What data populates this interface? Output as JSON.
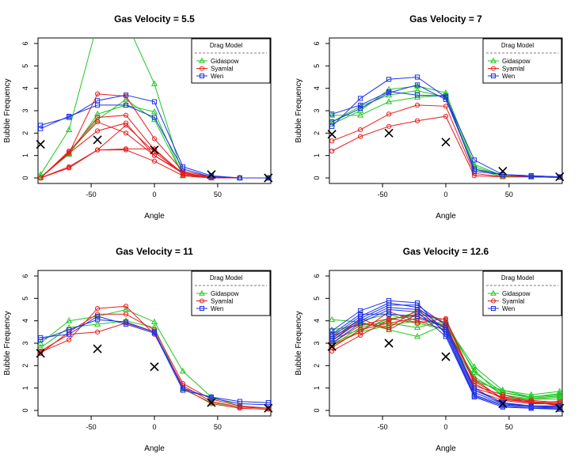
{
  "figure": {
    "domain": "multi-panel line chart"
  },
  "legend": {
    "title": "Drag Model",
    "entries": [
      {
        "name": "Gidaspow",
        "color": "#1ec81e",
        "marker": "triangle"
      },
      {
        "name": "Syamlal",
        "color": "#e61e1e",
        "marker": "circle"
      },
      {
        "name": "Wen",
        "color": "#1e32e6",
        "marker": "square"
      }
    ]
  },
  "chart_data": [
    {
      "type": "line",
      "title": "Gas Velocity = 5.5",
      "xlabel": "Angle",
      "ylabel": "Bubble Frequency",
      "x": [
        -90,
        -67.5,
        -45,
        -22.5,
        0,
        22.5,
        45,
        67.5,
        90
      ],
      "xticks": [
        "-50",
        "0",
        "50"
      ],
      "xtick_values": [
        -50,
        0,
        50
      ],
      "yticks": [
        "0",
        "1",
        "2",
        "3",
        "4",
        "5",
        "6"
      ],
      "xlim": [
        -92,
        92
      ],
      "ylim": [
        0,
        6
      ],
      "series": [
        {
          "name": "Gidaspow",
          "values": [
            0.15,
            2.15,
            6.9,
            7.0,
            4.2,
            0.1,
            0.0,
            0.0,
            0.0
          ]
        },
        {
          "name": "Gidaspow",
          "values": [
            0.05,
            1.05,
            2.85,
            3.25,
            2.95,
            0.1,
            0.0,
            0.0,
            0.0
          ]
        },
        {
          "name": "Gidaspow",
          "values": [
            0.0,
            1.1,
            2.6,
            3.5,
            2.6,
            0.1,
            0.0,
            0.0,
            0.0
          ]
        },
        {
          "name": "Syamlal",
          "values": [
            0.0,
            1.1,
            3.75,
            3.65,
            1.75,
            0.3,
            0.05,
            0.0,
            0.0
          ]
        },
        {
          "name": "Syamlal",
          "values": [
            0.0,
            1.15,
            2.7,
            2.8,
            1.25,
            0.2,
            0.05,
            0.0,
            0.0
          ]
        },
        {
          "name": "Syamlal",
          "values": [
            0.0,
            1.1,
            2.1,
            2.45,
            1.0,
            0.25,
            0.0,
            0.0,
            0.0
          ]
        },
        {
          "name": "Syamlal",
          "values": [
            0.0,
            0.45,
            1.25,
            2.35,
            1.15,
            0.2,
            0.0,
            0.0,
            0.0
          ]
        },
        {
          "name": "Syamlal",
          "values": [
            0.0,
            0.45,
            1.25,
            1.3,
            1.3,
            0.15,
            0.0,
            0.0,
            0.0
          ]
        },
        {
          "name": "Syamlal",
          "values": [
            0.0,
            0.5,
            1.25,
            1.25,
            0.75,
            0.1,
            0.0,
            0.0,
            0.0
          ]
        },
        {
          "name": "Syamlal",
          "values": [
            0.0,
            1.2,
            2.5,
            2.0,
            1.0,
            0.2,
            0.0,
            0.0,
            0.0
          ]
        },
        {
          "name": "Wen",
          "values": [
            2.35,
            2.7,
            3.45,
            3.7,
            3.4,
            0.5,
            0.1,
            0.0,
            0.0
          ]
        },
        {
          "name": "Wen",
          "values": [
            2.2,
            2.75,
            3.25,
            3.25,
            2.7,
            0.4,
            0.05,
            0.0,
            0.0
          ]
        }
      ],
      "observed": {
        "x": [
          -90,
          -45,
          0,
          45,
          90
        ],
        "y": [
          1.5,
          1.7,
          1.25,
          0.15,
          0.0
        ]
      }
    },
    {
      "type": "line",
      "title": "Gas Velocity = 7",
      "xlabel": "Angle",
      "ylabel": "Bubble Frequency",
      "x": [
        -90,
        -67.5,
        -45,
        -22.5,
        0,
        22.5,
        45,
        67.5,
        90
      ],
      "xticks": [
        "-50",
        "0",
        "50"
      ],
      "xtick_values": [
        -50,
        0,
        50
      ],
      "yticks": [
        "0",
        "1",
        "2",
        "3",
        "4",
        "5",
        "6"
      ],
      "xlim": [
        -92,
        92
      ],
      "ylim": [
        0,
        6
      ],
      "series": [
        {
          "name": "Gidaspow",
          "values": [
            2.4,
            3.0,
            3.95,
            4.1,
            3.8,
            0.6,
            0.1,
            0.05,
            0.02
          ]
        },
        {
          "name": "Gidaspow",
          "values": [
            2.5,
            3.2,
            3.7,
            3.9,
            3.6,
            0.5,
            0.1,
            0.05,
            0.02
          ]
        },
        {
          "name": "Gidaspow",
          "values": [
            2.8,
            2.8,
            3.4,
            3.6,
            3.7,
            0.4,
            0.05,
            0.05,
            0.02
          ]
        },
        {
          "name": "Syamlal",
          "values": [
            1.2,
            1.85,
            2.3,
            2.55,
            2.75,
            0.1,
            0.05,
            0.05,
            0.02
          ]
        },
        {
          "name": "Syamlal",
          "values": [
            1.65,
            2.15,
            2.85,
            3.25,
            3.2,
            0.2,
            0.05,
            0.05,
            0.02
          ]
        },
        {
          "name": "Wen",
          "values": [
            2.3,
            3.55,
            4.4,
            4.5,
            3.6,
            0.8,
            0.15,
            0.05,
            0.05
          ]
        },
        {
          "name": "Wen",
          "values": [
            2.5,
            3.1,
            3.8,
            4.15,
            3.5,
            0.4,
            0.15,
            0.1,
            0.05
          ]
        },
        {
          "name": "Wen",
          "values": [
            2.85,
            3.25,
            3.85,
            3.7,
            3.65,
            0.3,
            0.15,
            0.1,
            0.05
          ]
        }
      ],
      "observed": {
        "x": [
          -90,
          -45,
          0,
          45,
          90
        ],
        "y": [
          1.95,
          2.0,
          1.6,
          0.3,
          0.05
        ]
      }
    },
    {
      "type": "line",
      "title": "Gas Velocity = 11",
      "xlabel": "Angle",
      "ylabel": "Bubble Frequency",
      "x": [
        -90,
        -67.5,
        -45,
        -22.5,
        0,
        22.5,
        45,
        67.5,
        90
      ],
      "xticks": [
        "-50",
        "0",
        "50"
      ],
      "xtick_values": [
        -50,
        0,
        50
      ],
      "yticks": [
        "0",
        "1",
        "2",
        "3",
        "4",
        "5",
        "6"
      ],
      "xlim": [
        -92,
        92
      ],
      "ylim": [
        0,
        6
      ],
      "series": [
        {
          "name": "Gidaspow",
          "values": [
            3.0,
            4.0,
            4.2,
            4.5,
            3.95,
            1.75,
            0.6,
            0.2,
            0.1
          ]
        },
        {
          "name": "Gidaspow",
          "values": [
            2.8,
            3.7,
            3.85,
            4.0,
            3.7,
            0.95,
            0.35,
            0.15,
            0.1
          ]
        },
        {
          "name": "Syamlal",
          "values": [
            2.6,
            3.15,
            4.55,
            4.65,
            3.4,
            1.1,
            0.4,
            0.15,
            0.1
          ]
        },
        {
          "name": "Syamlal",
          "values": [
            2.65,
            3.4,
            3.5,
            3.9,
            3.5,
            1.0,
            0.3,
            0.1,
            0.05
          ]
        },
        {
          "name": "Syamlal",
          "values": [
            2.55,
            3.5,
            4.3,
            4.3,
            3.6,
            1.2,
            0.5,
            0.2,
            0.1
          ]
        },
        {
          "name": "Wen",
          "values": [
            3.25,
            3.4,
            4.2,
            3.85,
            3.45,
            0.9,
            0.6,
            0.4,
            0.35
          ]
        },
        {
          "name": "Wen",
          "values": [
            3.15,
            3.6,
            4.05,
            3.95,
            3.5,
            1.0,
            0.55,
            0.3,
            0.25
          ]
        }
      ],
      "observed": {
        "x": [
          -90,
          -45,
          0,
          45,
          90
        ],
        "y": [
          2.55,
          2.75,
          1.95,
          0.35,
          0.1
        ]
      }
    },
    {
      "type": "line",
      "title": "Gas Velocity = 12.6",
      "xlabel": "Angle",
      "ylabel": "Bubble Frequency",
      "x": [
        -90,
        -67.5,
        -45,
        -22.5,
        0,
        22.5,
        45,
        67.5,
        90
      ],
      "xticks": [
        "-50",
        "0",
        "50"
      ],
      "xtick_values": [
        -50,
        0,
        50
      ],
      "yticks": [
        "0",
        "1",
        "2",
        "3",
        "4",
        "5",
        "6"
      ],
      "xlim": [
        -92,
        92
      ],
      "ylim": [
        0,
        6
      ],
      "series": [
        {
          "name": "Gidaspow",
          "values": [
            4.05,
            3.95,
            3.6,
            3.3,
            3.85,
            1.95,
            0.9,
            0.7,
            0.85
          ]
        },
        {
          "name": "Gidaspow",
          "values": [
            3.6,
            3.8,
            3.9,
            3.7,
            4.0,
            1.7,
            0.8,
            0.6,
            0.7
          ]
        },
        {
          "name": "Gidaspow",
          "values": [
            3.2,
            3.6,
            4.1,
            4.2,
            3.7,
            1.5,
            0.7,
            0.5,
            0.6
          ]
        },
        {
          "name": "Gidaspow",
          "values": [
            3.4,
            4.0,
            4.3,
            3.9,
            3.6,
            1.3,
            0.9,
            0.6,
            0.75
          ]
        },
        {
          "name": "Gidaspow",
          "values": [
            3.0,
            3.5,
            3.8,
            4.0,
            3.8,
            1.8,
            0.6,
            0.5,
            0.5
          ]
        },
        {
          "name": "Gidaspow",
          "values": [
            2.9,
            3.7,
            4.0,
            4.4,
            3.9,
            1.4,
            0.8,
            0.55,
            0.65
          ]
        },
        {
          "name": "Syamlal",
          "values": [
            2.65,
            3.35,
            4.05,
            4.3,
            4.05,
            1.2,
            0.5,
            0.4,
            0.3
          ]
        },
        {
          "name": "Syamlal",
          "values": [
            2.8,
            3.6,
            3.9,
            4.1,
            3.8,
            1.0,
            0.6,
            0.35,
            0.25
          ]
        },
        {
          "name": "Syamlal",
          "values": [
            3.0,
            3.8,
            4.1,
            3.9,
            4.1,
            1.3,
            0.55,
            0.45,
            0.35
          ]
        },
        {
          "name": "Syamlal",
          "values": [
            3.3,
            3.9,
            3.7,
            4.5,
            3.9,
            0.9,
            0.45,
            0.3,
            0.3
          ]
        },
        {
          "name": "Syamlal",
          "values": [
            2.9,
            3.5,
            4.4,
            4.0,
            3.6,
            1.1,
            0.7,
            0.4,
            0.2
          ]
        },
        {
          "name": "Syamlal",
          "values": [
            3.1,
            4.1,
            3.6,
            4.3,
            3.7,
            1.4,
            0.5,
            0.35,
            0.4
          ]
        },
        {
          "name": "Wen",
          "values": [
            3.55,
            4.45,
            4.9,
            4.8,
            3.4,
            0.65,
            0.2,
            0.1,
            0.1
          ]
        },
        {
          "name": "Wen",
          "values": [
            3.3,
            4.2,
            4.8,
            4.6,
            3.6,
            0.8,
            0.3,
            0.2,
            0.15
          ]
        },
        {
          "name": "Wen",
          "values": [
            3.1,
            4.0,
            4.6,
            4.5,
            3.5,
            0.7,
            0.25,
            0.15,
            0.1
          ]
        },
        {
          "name": "Wen",
          "values": [
            3.4,
            4.3,
            4.3,
            4.2,
            3.7,
            0.9,
            0.35,
            0.2,
            0.2
          ]
        },
        {
          "name": "Wen",
          "values": [
            3.0,
            3.9,
            4.5,
            4.4,
            3.3,
            0.6,
            0.15,
            0.1,
            0.05
          ]
        },
        {
          "name": "Wen",
          "values": [
            3.2,
            4.1,
            4.7,
            4.7,
            3.8,
            1.0,
            0.3,
            0.15,
            0.15
          ]
        }
      ],
      "observed": {
        "x": [
          -90,
          -45,
          0,
          45,
          90
        ],
        "y": [
          2.85,
          3.0,
          2.4,
          0.3,
          0.1
        ]
      }
    }
  ]
}
